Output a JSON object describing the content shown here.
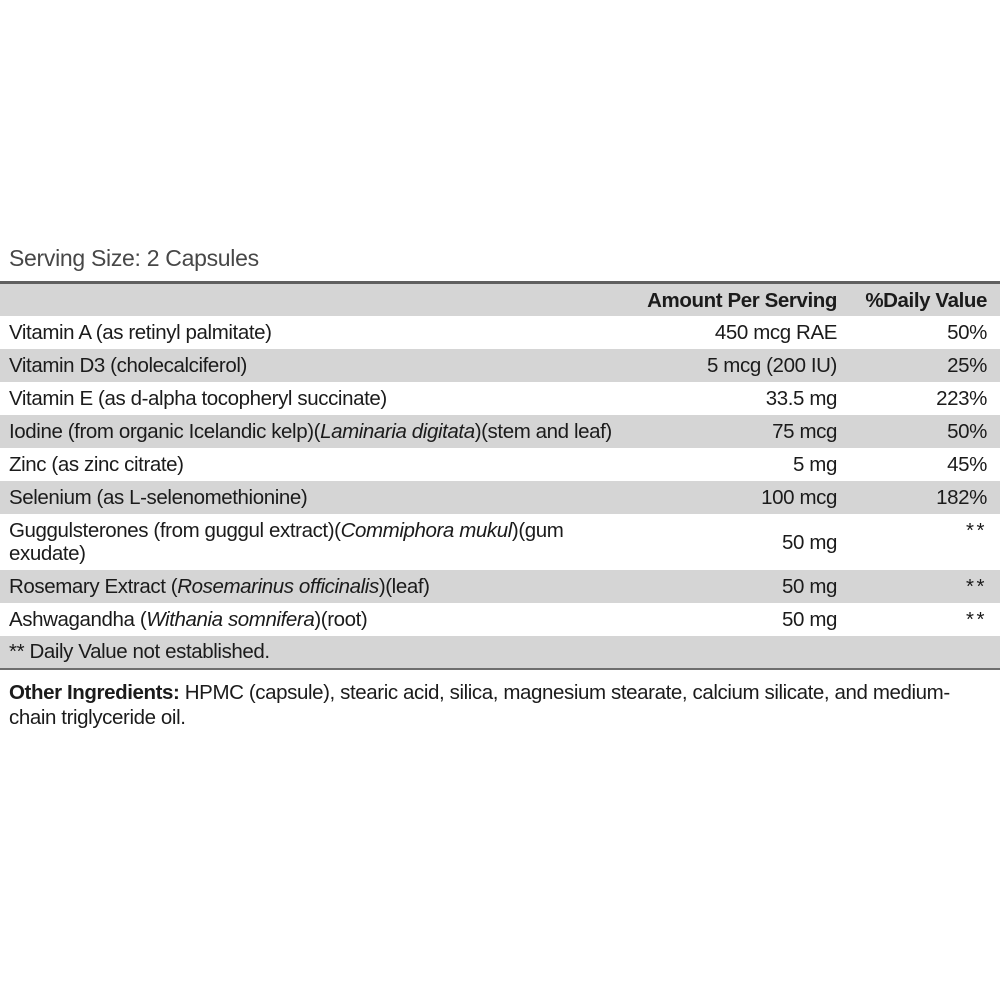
{
  "serving_size": "Serving Size: 2 Capsules",
  "table": {
    "headers": {
      "ingredient": "",
      "amount": "Amount Per Serving",
      "daily_value": "%Daily Value"
    },
    "rows": [
      {
        "name_parts": [
          {
            "text": "Vitamin A (as retinyl palmitate)",
            "italic": false
          }
        ],
        "amount": "450 mcg RAE",
        "daily_value": "50%"
      },
      {
        "name_parts": [
          {
            "text": "Vitamin D3 (cholecalciferol)",
            "italic": false
          }
        ],
        "amount": "5 mcg (200 IU)",
        "daily_value": "25%"
      },
      {
        "name_parts": [
          {
            "text": "Vitamin E (as d-alpha tocopheryl succinate)",
            "italic": false
          }
        ],
        "amount": "33.5 mg",
        "daily_value": "223%"
      },
      {
        "name_parts": [
          {
            "text": "Iodine (from organic Icelandic kelp)(",
            "italic": false
          },
          {
            "text": "Laminaria digitata",
            "italic": true
          },
          {
            "text": ")(stem and leaf)",
            "italic": false
          }
        ],
        "amount": "75 mcg",
        "daily_value": "50%"
      },
      {
        "name_parts": [
          {
            "text": "Zinc (as zinc citrate)",
            "italic": false
          }
        ],
        "amount": "5 mg",
        "daily_value": "45%"
      },
      {
        "name_parts": [
          {
            "text": "Selenium (as L-selenomethionine)",
            "italic": false
          }
        ],
        "amount": "100 mcg",
        "daily_value": "182%"
      },
      {
        "name_parts": [
          {
            "text": "Guggulsterones (from guggul extract)(",
            "italic": false
          },
          {
            "text": "Commiphora mukul",
            "italic": true
          },
          {
            "text": ")(gum exudate)",
            "italic": false
          }
        ],
        "amount": "50 mg",
        "daily_value": "**"
      },
      {
        "name_parts": [
          {
            "text": "Rosemary Extract (",
            "italic": false
          },
          {
            "text": "Rosemarinus officinalis",
            "italic": true
          },
          {
            "text": ")(leaf)",
            "italic": false
          }
        ],
        "amount": "50 mg",
        "daily_value": "**"
      },
      {
        "name_parts": [
          {
            "text": "Ashwagandha (",
            "italic": false
          },
          {
            "text": "Withania somnifera",
            "italic": true
          },
          {
            "text": ")(root)",
            "italic": false
          }
        ],
        "amount": "50 mg",
        "daily_value": "**"
      }
    ],
    "footnote": "** Daily Value not established."
  },
  "other_ingredients": {
    "label": "Other Ingredients:",
    "text": " HPMC (capsule), stearic acid, silica, magnesium stearate, calcium silicate, and medium-chain triglyceride oil."
  },
  "colors": {
    "row_shade": "#d5d5d5",
    "table_top_border": "#5f5f5f",
    "footnote_border": "#6e6e6e",
    "text": "#1b1b1b",
    "serving_text": "#474747"
  }
}
